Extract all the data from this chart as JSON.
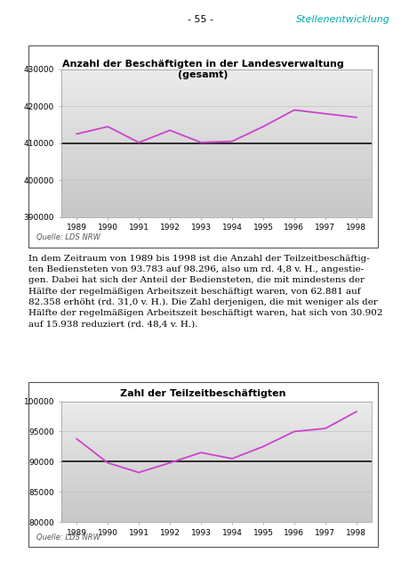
{
  "page_title_left": "- 55 -",
  "page_title_right": "Stellenentwicklung",
  "chart1": {
    "title": "Anzahl der Beschäftigten in der Landesverwaltung\n(gesamt)",
    "years": [
      1989,
      1990,
      1991,
      1992,
      1993,
      1994,
      1995,
      1996,
      1997,
      1998
    ],
    "values": [
      412500,
      414500,
      410200,
      413500,
      410200,
      410500,
      414500,
      419000,
      418000,
      417000
    ],
    "ylim": [
      390000,
      430000
    ],
    "yticks": [
      390000,
      400000,
      410000,
      420000,
      430000
    ],
    "hline": 410000,
    "source": "Quelle: LDS NRW",
    "line_color": "#cc44cc",
    "hline_color": "#111111"
  },
  "text_block": "In dem Zeitraum von 1989 bis 1998 ist die Anzahl der Teilzeitbeschäftig-\nten Bediensteten von 93.783 auf 98.296, also um rd. 4,8 v. H., angestie-\ngen. Dabei hat sich der Anteil der Bediensteten, die mit mindestens der\nHälfte der regelmäßigen Arbeitszeit beschäftigt waren, von 62.881 auf\n82.358 erhöht (rd. 31,0 v. H.). Die Zahl derjenigen, die mit weniger als der\nHälfte der regelmäßigen Arbeitszeit beschäftigt waren, hat sich von 30.902\nauf 15.938 reduziert (rd. 48,4 v. H.).",
  "chart2": {
    "title": "Zahl der Teilzeitbeschäftigten",
    "years": [
      1989,
      1990,
      1991,
      1992,
      1993,
      1994,
      1995,
      1996,
      1997,
      1998
    ],
    "values": [
      93783,
      89800,
      88200,
      89800,
      91500,
      90500,
      92500,
      95000,
      95500,
      98296
    ],
    "ylim": [
      80000,
      100000
    ],
    "yticks": [
      80000,
      85000,
      90000,
      95000,
      100000
    ],
    "hline": 90000,
    "source": "Quelle: LDS NRW",
    "line_color": "#cc44cc",
    "hline_color": "#111111"
  },
  "bg_color": "white",
  "page_bg": "white"
}
